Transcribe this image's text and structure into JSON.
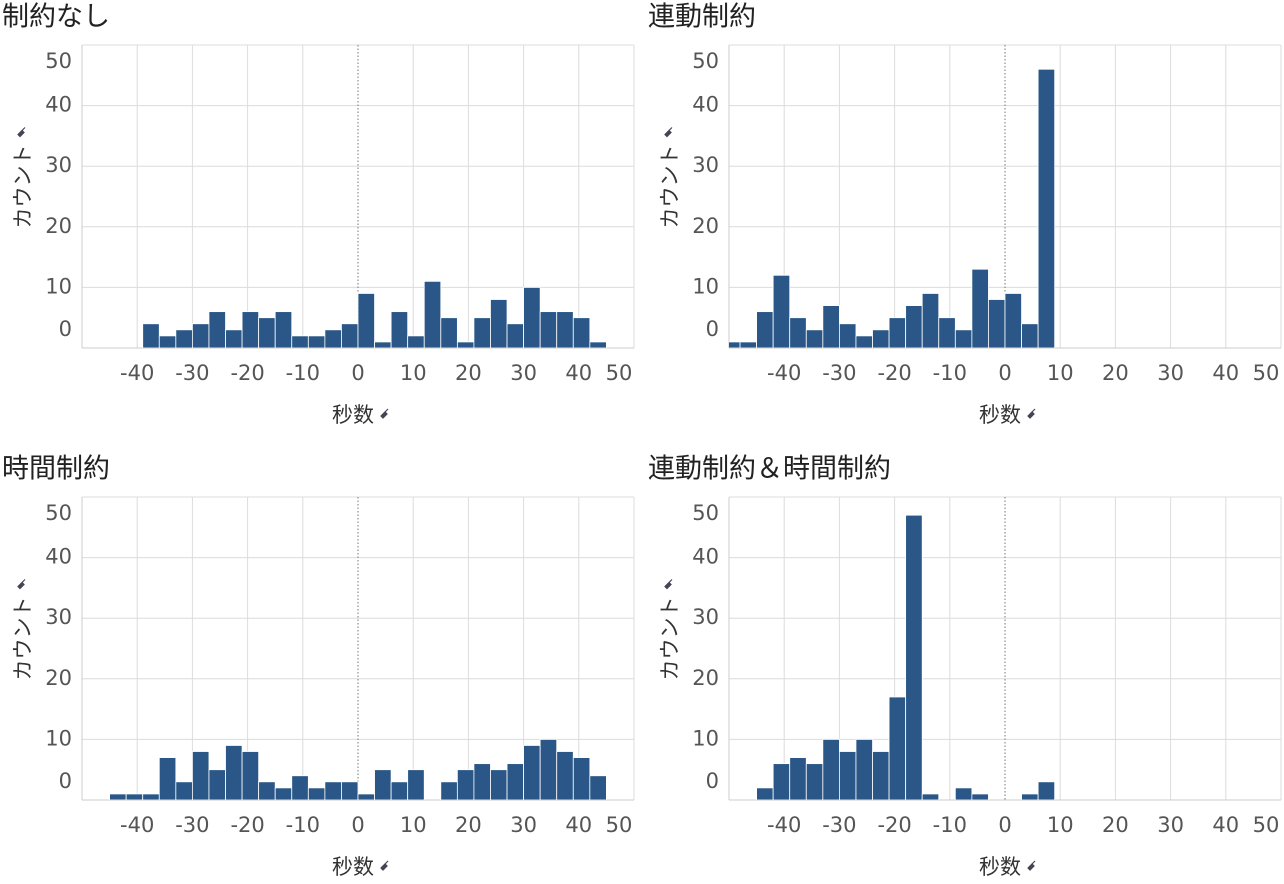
{
  "chart_data": [
    {
      "type": "histogram",
      "title": "制約なし",
      "xlabel": "秒数",
      "ylabel": "カウント",
      "color": "#2a5787",
      "bins": [
        -39,
        -36,
        -33,
        -30,
        -27,
        -24,
        -21,
        -18,
        -15,
        -12,
        -9,
        -6,
        -3,
        0,
        3,
        6,
        9,
        12,
        15,
        18,
        21,
        24,
        27,
        30,
        33,
        36,
        39,
        42,
        45
      ],
      "values": [
        4,
        2,
        3,
        4,
        6,
        3,
        6,
        5,
        6,
        2,
        2,
        3,
        4,
        9,
        1,
        6,
        2,
        11,
        5,
        1,
        5,
        8,
        4,
        10,
        6,
        6,
        5,
        1
      ],
      "xlim": [
        -50,
        50
      ],
      "ylim": [
        0,
        50
      ],
      "xticks": [
        -40,
        -30,
        -20,
        -10,
        0,
        10,
        20,
        30,
        40,
        50
      ],
      "yticks": [
        0,
        10,
        20,
        30,
        40,
        50
      ],
      "grid": true
    },
    {
      "type": "histogram",
      "title": "連動制約",
      "xlabel": "秒数",
      "ylabel": "カウント",
      "color": "#2a5787",
      "bins": [
        -51,
        -48,
        -45,
        -42,
        -39,
        -36,
        -33,
        -30,
        -27,
        -24,
        -21,
        -18,
        -15,
        -12,
        -9,
        -6,
        -3,
        0,
        3,
        6,
        9
      ],
      "values": [
        1,
        1,
        6,
        12,
        5,
        3,
        7,
        4,
        2,
        3,
        5,
        7,
        9,
        5,
        3,
        13,
        8,
        9,
        4,
        46
      ],
      "xlim": [
        -50,
        50
      ],
      "ylim": [
        0,
        50
      ],
      "xticks": [
        -40,
        -30,
        -20,
        -10,
        0,
        10,
        20,
        30,
        40,
        50
      ],
      "yticks": [
        0,
        10,
        20,
        30,
        40,
        50
      ],
      "grid": true
    },
    {
      "type": "histogram",
      "title": "時間制約",
      "xlabel": "秒数",
      "ylabel": "カウント",
      "color": "#2a5787",
      "bins": [
        -45,
        -42,
        -39,
        -36,
        -33,
        -30,
        -27,
        -24,
        -21,
        -18,
        -15,
        -12,
        -9,
        -6,
        -3,
        0,
        3,
        6,
        9,
        12,
        15,
        18,
        21,
        24,
        27,
        30,
        33,
        36,
        39,
        42,
        45
      ],
      "values": [
        1,
        1,
        1,
        7,
        3,
        8,
        5,
        9,
        8,
        3,
        2,
        4,
        2,
        3,
        3,
        1,
        5,
        3,
        5,
        0,
        3,
        5,
        6,
        5,
        6,
        9,
        10,
        8,
        7,
        4
      ],
      "xlim": [
        -50,
        50
      ],
      "ylim": [
        0,
        50
      ],
      "xticks": [
        -40,
        -30,
        -20,
        -10,
        0,
        10,
        20,
        30,
        40,
        50
      ],
      "yticks": [
        0,
        10,
        20,
        30,
        40,
        50
      ],
      "grid": true
    },
    {
      "type": "histogram",
      "title": "連動制約＆時間制約",
      "xlabel": "秒数",
      "ylabel": "カウント",
      "color": "#2a5787",
      "bins": [
        -45,
        -42,
        -39,
        -36,
        -33,
        -30,
        -27,
        -24,
        -21,
        -18,
        -15,
        -12,
        -9,
        -6,
        -3,
        0,
        3,
        6,
        9
      ],
      "values": [
        2,
        6,
        7,
        6,
        10,
        8,
        10,
        8,
        17,
        47,
        1,
        0,
        2,
        1,
        0,
        0,
        1,
        3
      ],
      "xlim": [
        -50,
        50
      ],
      "ylim": [
        0,
        50
      ],
      "xticks": [
        -40,
        -30,
        -20,
        -10,
        0,
        10,
        20,
        30,
        40,
        50
      ],
      "yticks": [
        0,
        10,
        20,
        30,
        40,
        50
      ],
      "grid": true
    }
  ]
}
